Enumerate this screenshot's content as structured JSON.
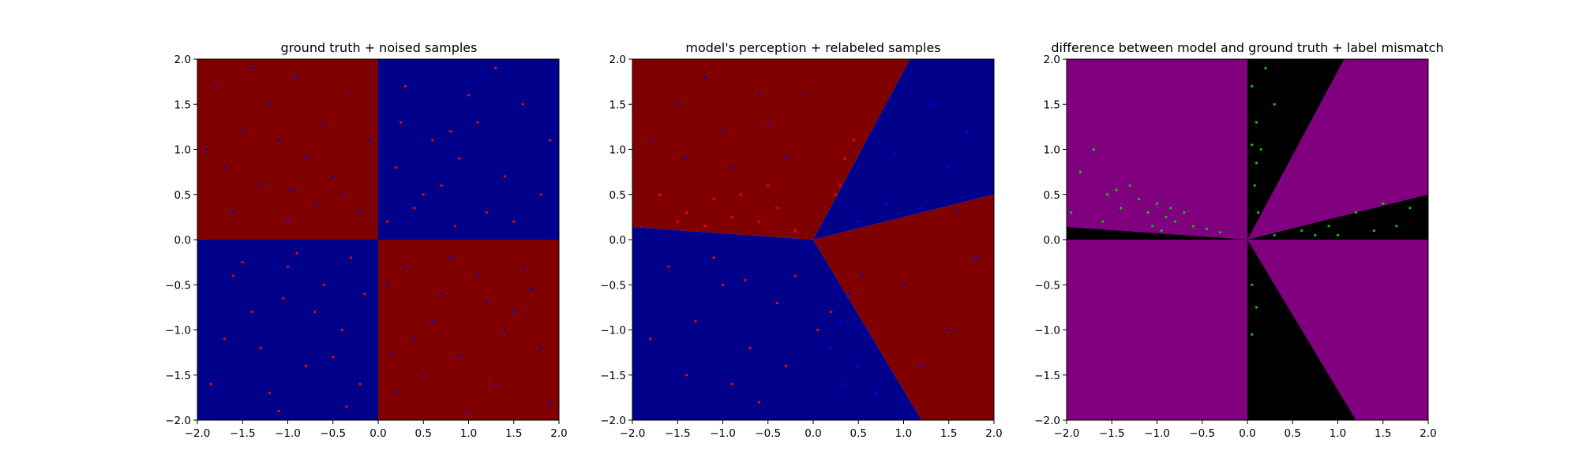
{
  "chart_data": [
    {
      "type": "scatter",
      "title": "ground truth + noised samples",
      "xlabel": "",
      "ylabel": "",
      "xlim": [
        -2.0,
        2.0
      ],
      "ylim": [
        -2.0,
        2.0
      ],
      "x_ticks": [
        "−2.0",
        "−1.5",
        "−1.0",
        "−0.5",
        "0.0",
        "0.5",
        "1.0",
        "1.5",
        "2.0"
      ],
      "y_ticks": [
        "2.0",
        "1.5",
        "1.0",
        "0.5",
        "0.0",
        "−0.5",
        "−1.0",
        "−1.5",
        "−2.0"
      ],
      "regions": [
        {
          "name": "x<0, y>0",
          "color": "#800000"
        },
        {
          "name": "x>0, y>0",
          "color": "#00008b"
        },
        {
          "name": "x<0, y<0",
          "color": "#00008b"
        },
        {
          "name": "x>0, y<0",
          "color": "#800000"
        }
      ],
      "series": [
        {
          "color": "#0000ff",
          "points": [
            [
              -1.8,
              1.7
            ],
            [
              -1.5,
              1.2
            ],
            [
              -1.2,
              1.5
            ],
            [
              -0.9,
              1.8
            ],
            [
              -0.6,
              1.3
            ],
            [
              -0.3,
              1.6
            ],
            [
              -1.7,
              0.8
            ],
            [
              -1.3,
              0.6
            ],
            [
              -0.8,
              0.9
            ],
            [
              -0.4,
              0.5
            ],
            [
              -1.6,
              0.3
            ],
            [
              -1.0,
              0.2
            ],
            [
              -0.5,
              0.7
            ],
            [
              -0.2,
              0.3
            ],
            [
              -1.9,
              1.0
            ],
            [
              -1.1,
              1.1
            ],
            [
              -0.7,
              0.4
            ],
            [
              -1.4,
              1.9
            ],
            [
              -0.1,
              1.1
            ],
            [
              -0.95,
              0.55
            ],
            [
              0.3,
              -0.3
            ],
            [
              0.7,
              -0.6
            ],
            [
              1.1,
              -0.4
            ],
            [
              1.5,
              -0.8
            ],
            [
              0.4,
              -1.1
            ],
            [
              0.9,
              -1.3
            ],
            [
              1.3,
              -1.6
            ],
            [
              1.8,
              -1.2
            ],
            [
              0.2,
              -1.7
            ],
            [
              0.6,
              -0.9
            ],
            [
              1.0,
              -1.9
            ],
            [
              1.6,
              -0.3
            ],
            [
              0.1,
              -0.5
            ],
            [
              0.8,
              -0.2
            ],
            [
              1.4,
              -1.0
            ],
            [
              1.9,
              -1.8
            ],
            [
              0.5,
              -1.5
            ],
            [
              1.2,
              -0.7
            ],
            [
              0.15,
              -1.25
            ],
            [
              1.7,
              -0.55
            ]
          ]
        },
        {
          "color": "#ff0000",
          "points": [
            [
              0.2,
              0.8
            ],
            [
              0.5,
              0.5
            ],
            [
              0.8,
              1.2
            ],
            [
              1.2,
              0.3
            ],
            [
              1.6,
              1.5
            ],
            [
              0.3,
              1.7
            ],
            [
              0.9,
              0.9
            ],
            [
              1.4,
              0.7
            ],
            [
              0.1,
              0.2
            ],
            [
              0.6,
              1.1
            ],
            [
              1.0,
              1.6
            ],
            [
              1.8,
              0.5
            ],
            [
              0.4,
              0.35
            ],
            [
              0.7,
              0.6
            ],
            [
              1.1,
              1.3
            ],
            [
              1.5,
              0.2
            ],
            [
              0.25,
              1.3
            ],
            [
              0.85,
              0.15
            ],
            [
              1.3,
              1.9
            ],
            [
              1.9,
              1.1
            ],
            [
              -0.3,
              -0.2
            ],
            [
              -0.6,
              -0.5
            ],
            [
              -1.0,
              -0.3
            ],
            [
              -1.4,
              -0.8
            ],
            [
              -0.4,
              -1.0
            ],
            [
              -0.8,
              -1.4
            ],
            [
              -1.2,
              -1.7
            ],
            [
              -1.7,
              -1.1
            ],
            [
              -0.2,
              -1.6
            ],
            [
              -0.7,
              -0.8
            ],
            [
              -1.1,
              -1.9
            ],
            [
              -1.6,
              -0.4
            ],
            [
              -0.15,
              -0.6
            ],
            [
              -0.9,
              -0.15
            ],
            [
              -1.3,
              -1.2
            ],
            [
              -1.85,
              -1.6
            ],
            [
              -0.5,
              -1.3
            ],
            [
              -1.05,
              -0.65
            ],
            [
              -0.35,
              -1.85
            ],
            [
              -1.5,
              -0.25
            ]
          ]
        }
      ]
    },
    {
      "type": "scatter",
      "title": "model's perception + relabeled samples",
      "xlabel": "",
      "ylabel": "",
      "xlim": [
        -2.0,
        2.0
      ],
      "ylim": [
        -2.0,
        2.0
      ],
      "x_ticks": [
        "−2.0",
        "−1.5",
        "−1.0",
        "−0.5",
        "0.0",
        "0.5",
        "1.0",
        "1.5",
        "2.0"
      ],
      "y_ticks": [
        "2.0",
        "1.5",
        "1.0",
        "0.5",
        "0.0",
        "−0.5",
        "−1.0",
        "−1.5",
        "−2.0"
      ],
      "regions": [
        {
          "name": "upper-left wedge",
          "color": "#800000",
          "polygon": [
            [
              -2.0,
              2.0
            ],
            [
              1.07,
              2.0
            ],
            [
              0.0,
              0.0
            ],
            [
              -2.0,
              0.14
            ]
          ]
        },
        {
          "name": "upper-right wedge",
          "color": "#00008b",
          "polygon": [
            [
              1.07,
              2.0
            ],
            [
              2.0,
              2.0
            ],
            [
              2.0,
              0.5
            ],
            [
              0.0,
              0.0
            ]
          ]
        },
        {
          "name": "lower-right wedge",
          "color": "#800000",
          "polygon": [
            [
              2.0,
              0.5
            ],
            [
              2.0,
              -2.0
            ],
            [
              1.2,
              -2.0
            ],
            [
              0.0,
              0.0
            ]
          ]
        },
        {
          "name": "lower-left wedge",
          "color": "#00008b",
          "polygon": [
            [
              -2.0,
              0.14
            ],
            [
              0.0,
              0.0
            ],
            [
              1.2,
              -2.0
            ],
            [
              -2.0,
              -2.0
            ]
          ]
        }
      ],
      "series": [
        {
          "color": "#ff0000",
          "points": [
            [
              -1.7,
              0.5
            ],
            [
              -1.4,
              0.3
            ],
            [
              -1.1,
              0.45
            ],
            [
              -0.9,
              0.25
            ],
            [
              -0.6,
              0.2
            ],
            [
              -0.4,
              0.35
            ],
            [
              -0.2,
              0.1
            ],
            [
              -1.2,
              0.15
            ],
            [
              0.3,
              0.6
            ],
            [
              0.35,
              0.9
            ],
            [
              0.45,
              1.1
            ],
            [
              0.25,
              0.5
            ],
            [
              -0.8,
              0.5
            ],
            [
              -1.5,
              0.2
            ],
            [
              -0.5,
              0.6
            ],
            [
              -1.0,
              -0.5
            ],
            [
              -1.3,
              -0.9
            ],
            [
              -0.7,
              -1.2
            ],
            [
              -0.4,
              -0.7
            ],
            [
              -1.6,
              -0.3
            ],
            [
              -0.9,
              -1.6
            ],
            [
              -0.2,
              -0.4
            ],
            [
              -1.8,
              -1.1
            ],
            [
              0.2,
              -0.8
            ],
            [
              -0.6,
              -1.8
            ],
            [
              -1.1,
              -0.2
            ],
            [
              -0.3,
              -1.4
            ],
            [
              -1.4,
              -1.5
            ],
            [
              0.05,
              -1.0
            ],
            [
              -0.75,
              -0.45
            ]
          ]
        },
        {
          "color": "#0000ff",
          "points": [
            [
              -1.5,
              1.5
            ],
            [
              -1.0,
              1.2
            ],
            [
              -0.6,
              1.6
            ],
            [
              -0.3,
              0.9
            ],
            [
              -1.8,
              1.1
            ],
            [
              -1.2,
              1.8
            ],
            [
              -0.5,
              1.3
            ],
            [
              -0.9,
              0.8
            ],
            [
              0.5,
              0.2
            ],
            [
              0.8,
              0.4
            ],
            [
              1.2,
              0.35
            ],
            [
              1.6,
              0.3
            ],
            [
              0.4,
              -0.6
            ],
            [
              0.6,
              -1.0
            ],
            [
              0.5,
              -1.4
            ],
            [
              0.3,
              -0.9
            ],
            [
              0.7,
              -1.7
            ],
            [
              0.2,
              -1.2
            ],
            [
              1.3,
              1.5
            ],
            [
              1.7,
              1.2
            ],
            [
              1.5,
              0.8
            ],
            [
              0.9,
              0.95
            ],
            [
              1.0,
              -0.5
            ],
            [
              1.5,
              -1.0
            ],
            [
              1.8,
              -0.2
            ],
            [
              1.2,
              -1.4
            ],
            [
              0.35,
              -1.6
            ],
            [
              0.55,
              -0.4
            ],
            [
              -0.1,
              1.6
            ],
            [
              -1.4,
              0.9
            ]
          ]
        }
      ]
    },
    {
      "type": "scatter",
      "title": "difference between model and ground truth + label mismatch",
      "xlabel": "",
      "ylabel": "",
      "xlim": [
        -2.0,
        2.0
      ],
      "ylim": [
        -2.0,
        2.0
      ],
      "x_ticks": [
        "−2.0",
        "−1.5",
        "−1.0",
        "−0.5",
        "0.0",
        "0.5",
        "1.0",
        "1.5",
        "2.0"
      ],
      "y_ticks": [
        "2.0",
        "1.5",
        "1.0",
        "0.5",
        "0.0",
        "−0.5",
        "−1.0",
        "−1.5",
        "−2.0"
      ],
      "regions": [
        {
          "name": "agreement",
          "color": "#800080",
          "polygon": [
            [
              -2.0,
              -2.0
            ],
            [
              2.0,
              -2.0
            ],
            [
              2.0,
              2.0
            ],
            [
              -2.0,
              2.0
            ]
          ]
        },
        {
          "name": "disagreement upper",
          "color": "#000000",
          "polygon": [
            [
              0.0,
              2.0
            ],
            [
              1.07,
              2.0
            ],
            [
              0.0,
              0.0
            ]
          ]
        },
        {
          "name": "disagreement right",
          "color": "#000000",
          "polygon": [
            [
              0.0,
              0.0
            ],
            [
              2.0,
              0.5
            ],
            [
              2.0,
              0.0
            ]
          ]
        },
        {
          "name": "disagreement lower",
          "color": "#000000",
          "polygon": [
            [
              0.0,
              0.0
            ],
            [
              1.2,
              -2.0
            ],
            [
              0.0,
              -2.0
            ]
          ]
        },
        {
          "name": "disagreement left",
          "color": "#000000",
          "polygon": [
            [
              -2.0,
              0.0
            ],
            [
              0.0,
              0.0
            ],
            [
              -2.0,
              0.14
            ]
          ]
        }
      ],
      "series": [
        {
          "color": "#00cc00",
          "points": [
            [
              -1.85,
              0.75
            ],
            [
              -1.7,
              1.0
            ],
            [
              -1.55,
              0.5
            ],
            [
              -1.4,
              0.35
            ],
            [
              -1.3,
              0.6
            ],
            [
              -1.2,
              0.45
            ],
            [
              -1.1,
              0.3
            ],
            [
              -1.0,
              0.4
            ],
            [
              -0.9,
              0.25
            ],
            [
              -0.8,
              0.2
            ],
            [
              -0.7,
              0.3
            ],
            [
              -0.6,
              0.15
            ],
            [
              -0.45,
              0.12
            ],
            [
              -0.3,
              0.08
            ],
            [
              -1.6,
              0.2
            ],
            [
              -1.45,
              0.55
            ],
            [
              -1.05,
              0.15
            ],
            [
              -0.85,
              0.35
            ],
            [
              -1.95,
              0.3
            ],
            [
              -0.95,
              0.1
            ],
            [
              0.05,
              1.7
            ],
            [
              0.1,
              1.3
            ],
            [
              0.15,
              1.0
            ],
            [
              0.08,
              0.6
            ],
            [
              0.12,
              0.3
            ],
            [
              0.05,
              1.05
            ],
            [
              0.1,
              0.85
            ],
            [
              0.05,
              -0.5
            ],
            [
              0.1,
              -0.75
            ],
            [
              0.05,
              -1.05
            ],
            [
              0.3,
              1.5
            ],
            [
              0.2,
              1.9
            ],
            [
              0.3,
              0.05
            ],
            [
              0.6,
              0.1
            ],
            [
              0.9,
              0.15
            ],
            [
              1.2,
              0.3
            ],
            [
              1.5,
              0.4
            ],
            [
              1.8,
              0.35
            ],
            [
              1.4,
              0.1
            ],
            [
              1.0,
              0.05
            ],
            [
              0.75,
              0.05
            ],
            [
              1.65,
              0.15
            ]
          ]
        }
      ]
    }
  ]
}
